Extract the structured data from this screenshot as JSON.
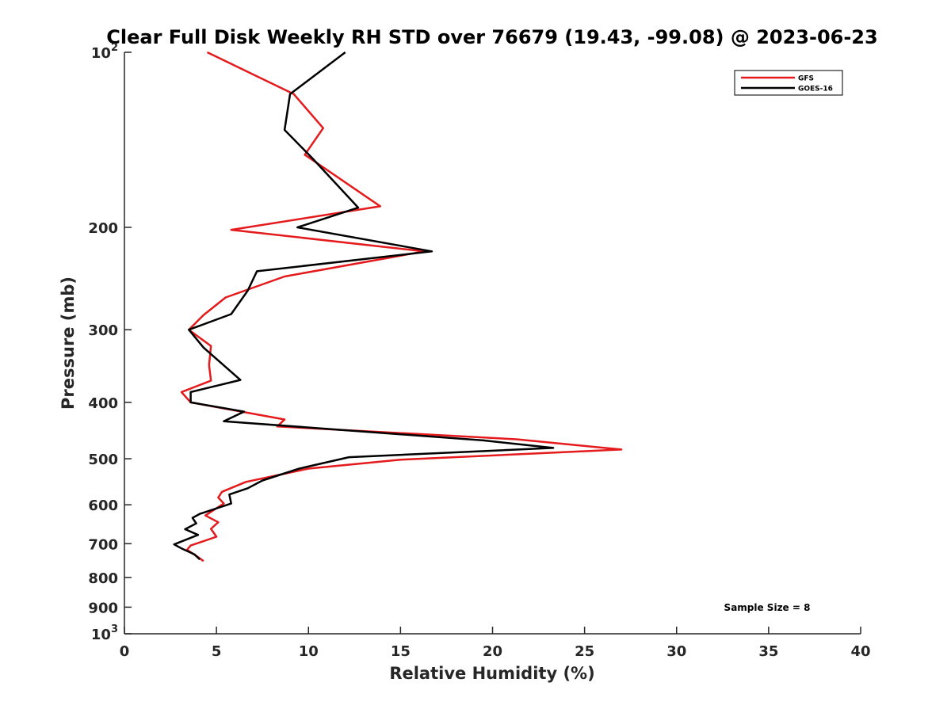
{
  "chart_data": {
    "type": "line",
    "title": "Clear Full Disk Weekly RH STD over 76679 (19.43, -99.08) @ 2023-06-23",
    "xlabel": "Relative Humidity (%)",
    "ylabel": "Pressure (mb)",
    "xlim": [
      0,
      40
    ],
    "ylim": [
      100,
      1000
    ],
    "y_scale": "log",
    "y_reversed": true,
    "x_ticks": [
      "0",
      "5",
      "10",
      "15",
      "20",
      "25",
      "30",
      "35",
      "40"
    ],
    "y_ticks": [
      {
        "value": 100,
        "base": "10",
        "exp": "2"
      },
      {
        "value": 200,
        "label": "200"
      },
      {
        "value": 300,
        "label": "300"
      },
      {
        "value": 400,
        "label": "400"
      },
      {
        "value": 500,
        "label": "500"
      },
      {
        "value": 600,
        "label": "600"
      },
      {
        "value": 700,
        "label": "700"
      },
      {
        "value": 800,
        "label": "800"
      },
      {
        "value": 900,
        "label": "900"
      },
      {
        "value": 1000,
        "base": "10",
        "exp": "3"
      }
    ],
    "grid": false,
    "legend_position": "top-right",
    "annotation": "Sample Size = 8",
    "series": [
      {
        "name": "GFS",
        "color": "#e41a1c",
        "points": [
          [
            4.5,
            100
          ],
          [
            9.2,
            118
          ],
          [
            10.8,
            135
          ],
          [
            9.8,
            150
          ],
          [
            13.9,
            184
          ],
          [
            5.8,
            202
          ],
          [
            16.3,
            220
          ],
          [
            8.7,
            243
          ],
          [
            5.5,
            264
          ],
          [
            4.3,
            283
          ],
          [
            3.5,
            300
          ],
          [
            4.7,
            320
          ],
          [
            4.6,
            345
          ],
          [
            4.7,
            367
          ],
          [
            3.1,
            384
          ],
          [
            3.6,
            400
          ],
          [
            8.7,
            428
          ],
          [
            8.3,
            440
          ],
          [
            21.3,
            463
          ],
          [
            27.0,
            482
          ],
          [
            15.0,
            502
          ],
          [
            10.0,
            520
          ],
          [
            6.6,
            548
          ],
          [
            5.3,
            570
          ],
          [
            5.1,
            583
          ],
          [
            5.4,
            597
          ],
          [
            4.4,
            626
          ],
          [
            5.1,
            643
          ],
          [
            4.7,
            660
          ],
          [
            5.0,
            681
          ],
          [
            3.6,
            705
          ],
          [
            3.4,
            717
          ],
          [
            4.0,
            738
          ],
          [
            4.3,
            750
          ]
        ]
      },
      {
        "name": "GOES-16",
        "color": "#000000",
        "points": [
          [
            12.0,
            100
          ],
          [
            9.0,
            118
          ],
          [
            8.7,
            136
          ],
          [
            10.2,
            152
          ],
          [
            12.7,
            185
          ],
          [
            9.4,
            200
          ],
          [
            16.7,
            220
          ],
          [
            7.2,
            238
          ],
          [
            6.7,
            257
          ],
          [
            5.8,
            282
          ],
          [
            3.5,
            300
          ],
          [
            4.3,
            322
          ],
          [
            6.3,
            366
          ],
          [
            3.6,
            384
          ],
          [
            3.6,
            400
          ],
          [
            6.5,
            415
          ],
          [
            5.4,
            431
          ],
          [
            19.5,
            465
          ],
          [
            23.3,
            479
          ],
          [
            12.2,
            497
          ],
          [
            9.5,
            520
          ],
          [
            7.5,
            545
          ],
          [
            6.7,
            562
          ],
          [
            5.7,
            576
          ],
          [
            5.8,
            597
          ],
          [
            4.1,
            622
          ],
          [
            3.7,
            632
          ],
          [
            3.9,
            646
          ],
          [
            3.3,
            661
          ],
          [
            4.0,
            676
          ],
          [
            2.7,
            702
          ],
          [
            3.1,
            713
          ],
          [
            3.8,
            730
          ],
          [
            4.1,
            745
          ]
        ]
      }
    ]
  }
}
